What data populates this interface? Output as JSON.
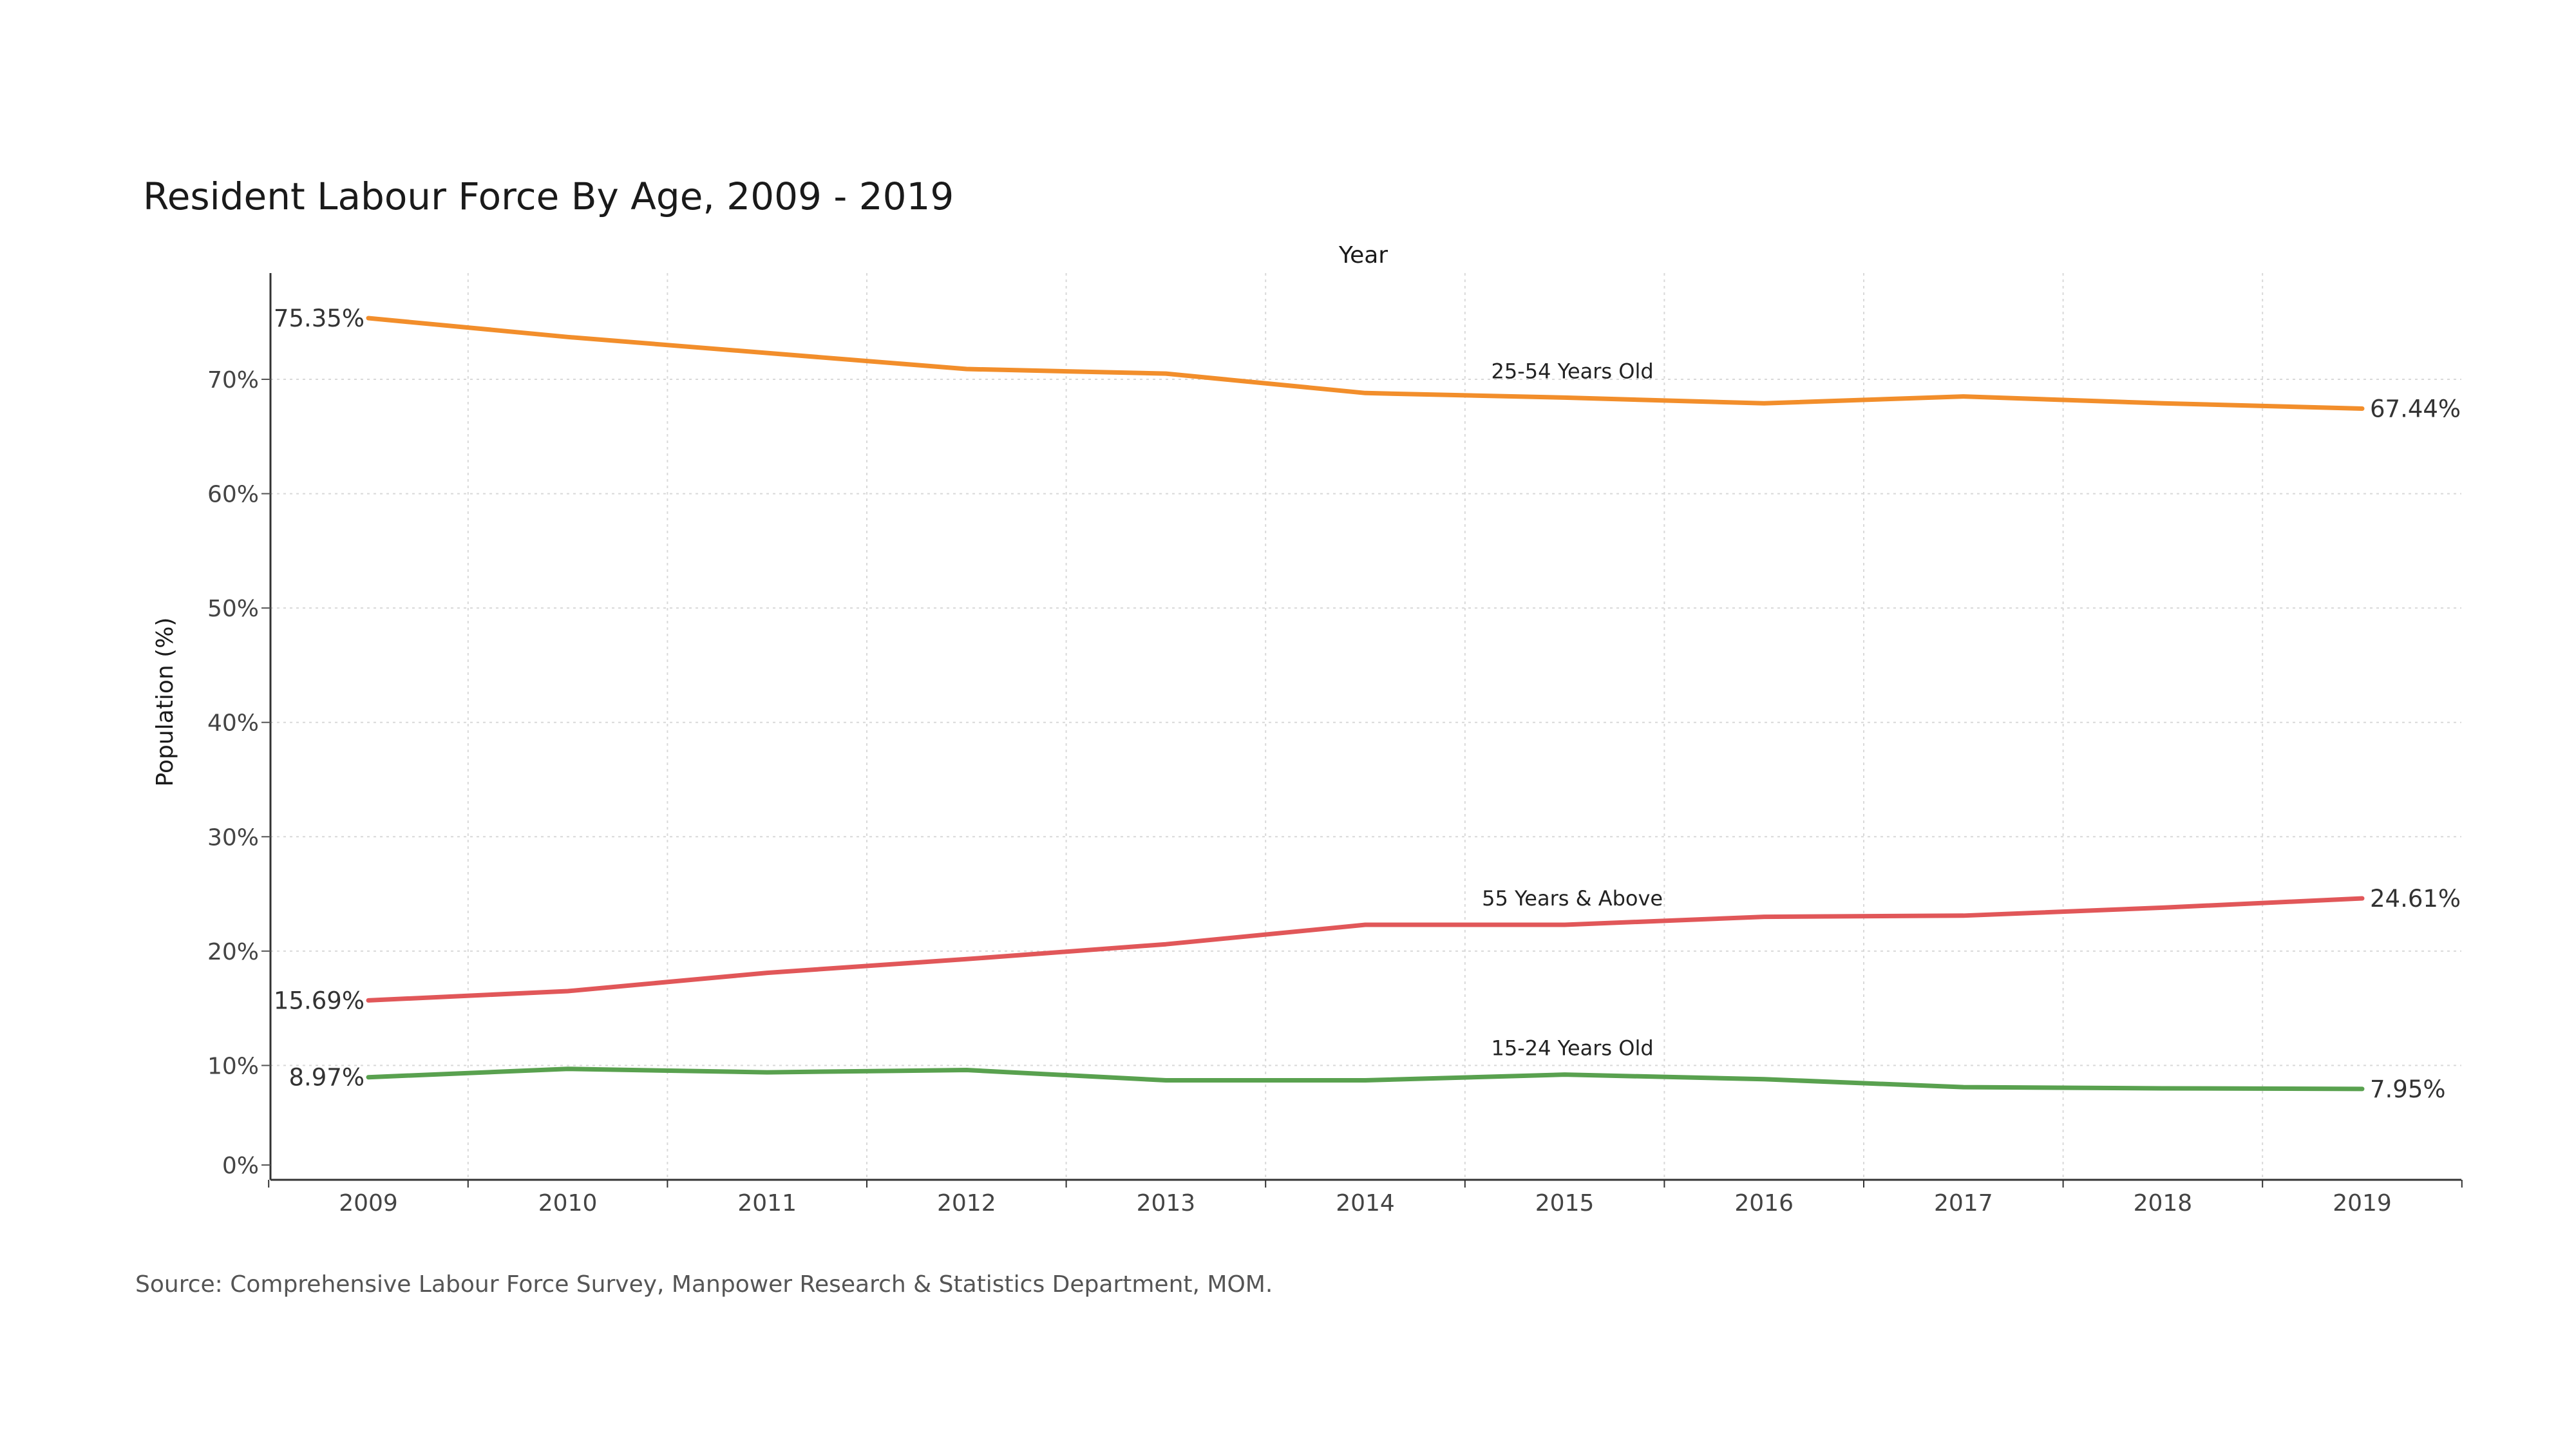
{
  "chart_data": {
    "type": "line",
    "title": "Resident Labour Force By Age, 2009 - 2019",
    "xlabel": "Year",
    "ylabel": "Population (%)",
    "x": [
      2009,
      2010,
      2011,
      2012,
      2013,
      2014,
      2015,
      2016,
      2017,
      2018,
      2019
    ],
    "x_tick_labels": [
      "2009",
      "2010",
      "2011",
      "2012",
      "2013",
      "2014",
      "2015",
      "2016",
      "2017",
      "2018",
      "2019"
    ],
    "ylim": [
      0,
      79
    ],
    "y_ticks": [
      0,
      10,
      20,
      30,
      40,
      50,
      60,
      70
    ],
    "y_tick_labels": [
      "0%",
      "10%",
      "20%",
      "30%",
      "40%",
      "50%",
      "60%",
      "70%"
    ],
    "grid": true,
    "series": [
      {
        "name": "25-54 Years Old",
        "color": "#f28e2b",
        "values": [
          75.35,
          73.7,
          72.3,
          70.9,
          70.5,
          68.8,
          68.4,
          67.9,
          68.5,
          67.9,
          67.44
        ],
        "start_label": "75.35%",
        "end_label": "67.44%"
      },
      {
        "name": "55 Years & Above",
        "color": "#e15759",
        "values": [
          15.69,
          16.5,
          18.1,
          19.3,
          20.6,
          22.3,
          22.3,
          23.0,
          23.1,
          23.8,
          24.61
        ],
        "start_label": "15.69%",
        "end_label": "24.61%"
      },
      {
        "name": "15-24 Years Old",
        "color": "#59a14f",
        "values": [
          8.97,
          9.7,
          9.4,
          9.6,
          8.7,
          8.7,
          9.2,
          8.8,
          8.1,
          8.0,
          7.95
        ],
        "start_label": "8.97%",
        "end_label": "7.95%"
      }
    ],
    "source": "Source: Comprehensive Labour Force Survey, Manpower Research & Statistics Department, MOM."
  }
}
